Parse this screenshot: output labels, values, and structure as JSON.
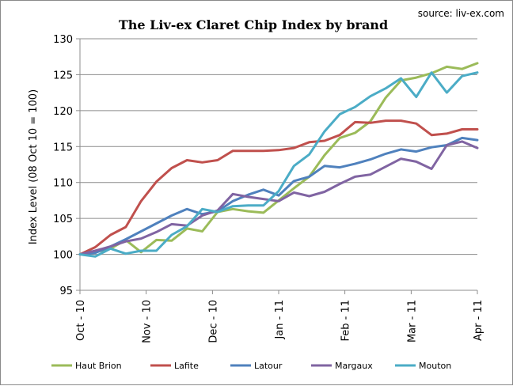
{
  "chart_data": {
    "type": "line",
    "title": "The Liv-ex Claret Chip Index by brand",
    "source": "source: liv-ex.com",
    "ylabel": "Index Level (08 Oct 10 = 100)",
    "xlabel": "",
    "ylim": [
      95,
      130
    ],
    "yticks": [
      95,
      100,
      105,
      110,
      115,
      120,
      125,
      130
    ],
    "xlim": [
      0,
      26
    ],
    "xticks": [
      {
        "x": 0,
        "label": "Oct - 10"
      },
      {
        "x": 4.33,
        "label": "Nov - 10"
      },
      {
        "x": 8.67,
        "label": "Dec - 10"
      },
      {
        "x": 13,
        "label": "Jan - 11"
      },
      {
        "x": 17.33,
        "label": "Feb - 11"
      },
      {
        "x": 21.67,
        "label": "Mar - 11"
      },
      {
        "x": 26,
        "label": "Apr - 11"
      }
    ],
    "grid": true,
    "legend_position": "bottom",
    "series": [
      {
        "name": "Haut Brion",
        "color": "#9BBB59",
        "values": [
          100,
          100.3,
          100.8,
          102,
          100.3,
          102.0,
          101.9,
          103.6,
          103.2,
          105.9,
          106.3,
          106.0,
          105.8,
          107.5,
          109.2,
          110.8,
          113.8,
          116.2,
          116.9,
          118.5,
          121.8,
          124.2,
          124.6,
          125.2,
          126.1,
          125.8,
          126.6
        ]
      },
      {
        "name": "Lafite",
        "color": "#C0504D",
        "values": [
          100,
          101.0,
          102.7,
          103.8,
          107.4,
          110.1,
          112.0,
          113.1,
          112.8,
          113.1,
          114.4,
          114.4,
          114.4,
          114.5,
          114.8,
          115.6,
          115.8,
          116.6,
          118.4,
          118.3,
          118.6,
          118.6,
          118.2,
          116.6,
          116.8,
          117.4,
          117.4
        ]
      },
      {
        "name": "Latour",
        "color": "#4F81BD",
        "values": [
          100,
          100.2,
          101.1,
          102.1,
          103.2,
          104.3,
          105.4,
          106.3,
          105.6,
          106.0,
          107.4,
          108.3,
          109.0,
          108.2,
          110.2,
          110.8,
          112.3,
          112.1,
          112.6,
          113.2,
          114.0,
          114.6,
          114.3,
          114.9,
          115.2,
          116.2,
          115.9
        ]
      },
      {
        "name": "Margaux",
        "color": "#8064A2",
        "values": [
          100,
          100.5,
          101.1,
          101.8,
          102.2,
          103.1,
          104.2,
          104.0,
          105.4,
          106.1,
          108.4,
          108.0,
          107.7,
          107.4,
          108.6,
          108.1,
          108.7,
          109.8,
          110.8,
          111.1,
          112.2,
          113.3,
          112.9,
          111.9,
          115.2,
          115.7,
          114.8
        ]
      },
      {
        "name": "Mouton",
        "color": "#4BACC6",
        "values": [
          100,
          99.7,
          100.8,
          100.1,
          100.5,
          100.5,
          102.7,
          103.9,
          106.3,
          105.9,
          106.7,
          106.8,
          106.8,
          108.8,
          112.3,
          113.9,
          117.1,
          119.5,
          120.5,
          122.0,
          123.1,
          124.5,
          121.9,
          125.3,
          122.5,
          124.8,
          125.3
        ]
      }
    ]
  }
}
